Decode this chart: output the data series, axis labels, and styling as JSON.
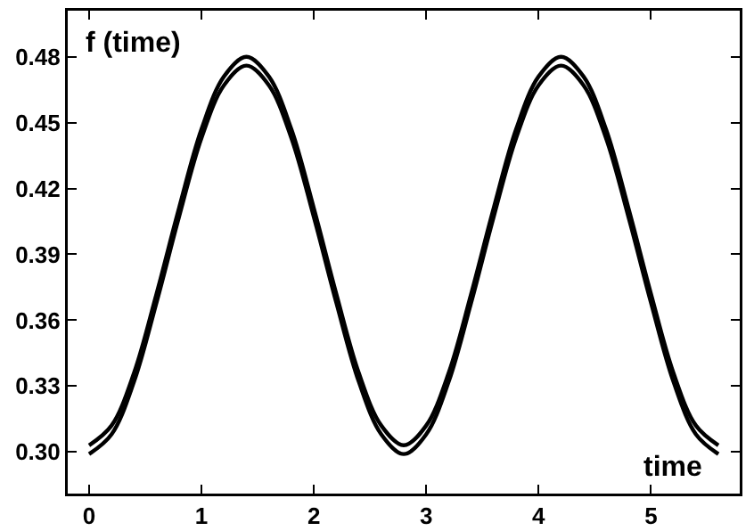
{
  "chart_data": {
    "type": "line",
    "xlabel": "time",
    "ylabel": "f (time)",
    "x": [
      0,
      0.2,
      0.4,
      0.6,
      0.8,
      1,
      1.2,
      1.4,
      1.6,
      1.8,
      2,
      2.2,
      2.4,
      2.6,
      2.8,
      3,
      3.2,
      3.4,
      3.6,
      3.8,
      4,
      4.2,
      4.4,
      4.6,
      4.8,
      5,
      5.2,
      5.4,
      5.6
    ],
    "series": [
      {
        "color": "#000000",
        "values": [
          0.303,
          0.312,
          0.336,
          0.372,
          0.411,
          0.447,
          0.471,
          0.48,
          0.471,
          0.447,
          0.411,
          0.372,
          0.336,
          0.312,
          0.303,
          0.312,
          0.336,
          0.372,
          0.411,
          0.447,
          0.471,
          0.48,
          0.471,
          0.447,
          0.411,
          0.372,
          0.336,
          0.312,
          0.303
        ]
      },
      {
        "color": "#000000",
        "values": [
          0.299,
          0.308,
          0.332,
          0.368,
          0.407,
          0.443,
          0.467,
          0.476,
          0.467,
          0.443,
          0.407,
          0.368,
          0.332,
          0.308,
          0.299,
          0.308,
          0.332,
          0.368,
          0.407,
          0.443,
          0.467,
          0.476,
          0.467,
          0.443,
          0.407,
          0.368,
          0.332,
          0.308,
          0.299
        ]
      }
    ],
    "xlim": [
      -0.19,
      5.79
    ],
    "xticks": [
      0,
      1,
      2,
      3,
      4,
      5
    ],
    "ylim": [
      0.281,
      0.501
    ],
    "yticks": [
      {
        "value": 0.3,
        "label": "0.30"
      },
      0.33,
      0.36,
      0.39,
      0.42,
      0.45,
      0.48
    ],
    "grid": false,
    "marker": "none",
    "line_style": "solid"
  }
}
